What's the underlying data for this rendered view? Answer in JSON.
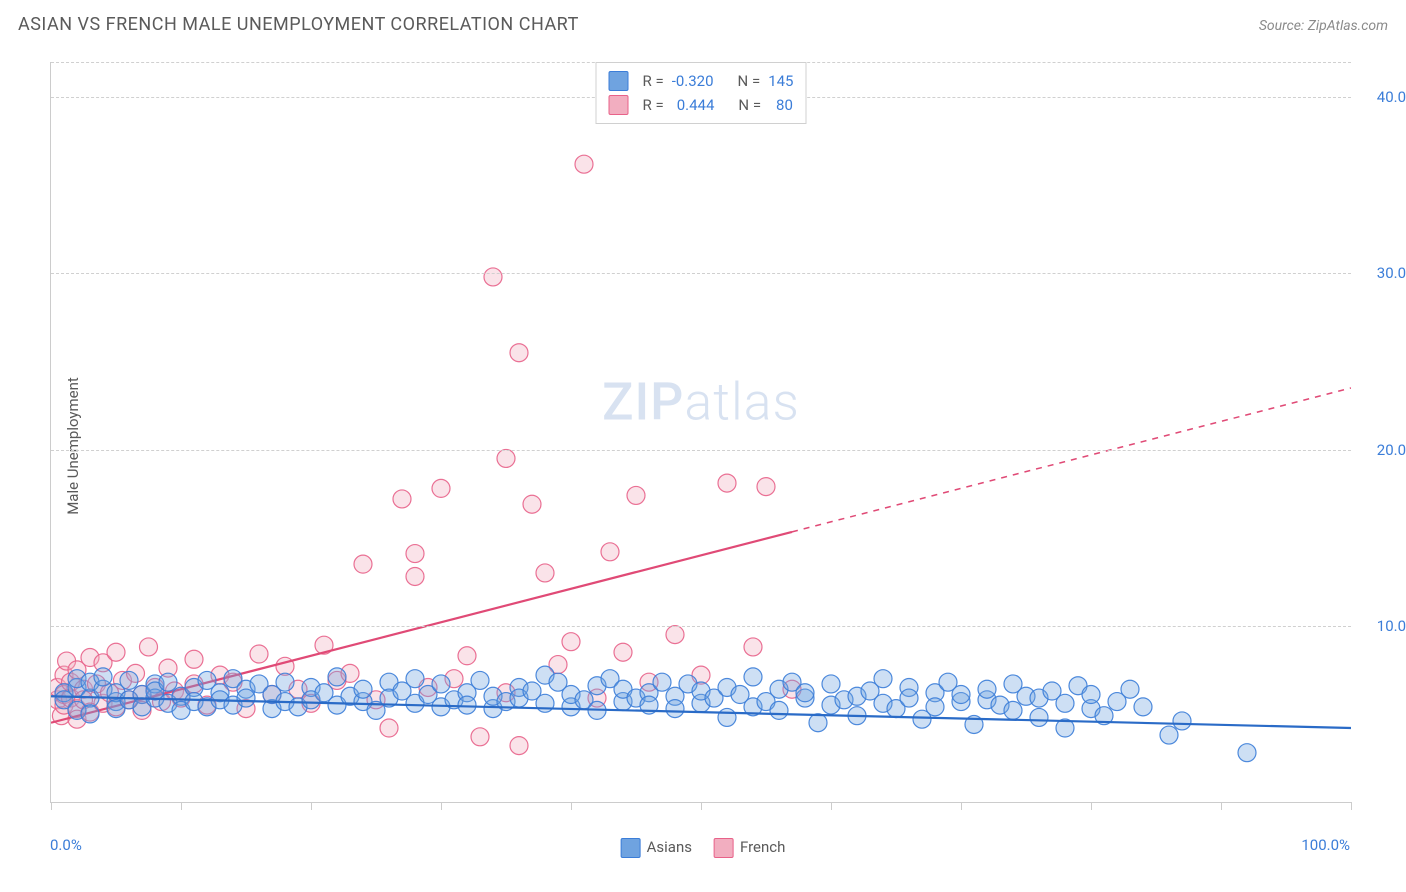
{
  "header": {
    "title": "ASIAN VS FRENCH MALE UNEMPLOYMENT CORRELATION CHART",
    "source": "Source: ZipAtlas.com"
  },
  "watermark": {
    "zip": "ZIP",
    "atlas": "atlas"
  },
  "chart": {
    "type": "scatter",
    "ylabel": "Male Unemployment",
    "xlim": [
      0,
      100
    ],
    "ylim": [
      0,
      42
    ],
    "xticks": [
      0,
      10,
      20,
      30,
      40,
      50,
      60,
      70,
      80,
      90,
      100
    ],
    "yticks": [
      10,
      20,
      30,
      40
    ],
    "ytick_labels": [
      "10.0%",
      "20.0%",
      "30.0%",
      "40.0%"
    ],
    "xlabel_min": "0.0%",
    "xlabel_max": "100.0%",
    "background_color": "#ffffff",
    "grid_color": "#d0d0d0",
    "marker_radius": 9,
    "marker_fill_opacity": 0.35,
    "marker_stroke_opacity": 0.9,
    "marker_stroke_width": 1.2,
    "line_width": 2.2,
    "series": {
      "asians": {
        "label": "Asians",
        "color": "#6fa3e0",
        "stroke": "#3b7dd8",
        "line_color": "#2a6bc7",
        "R": "-0.320",
        "N": "145",
        "trend": {
          "x1": 0,
          "y1": 6.0,
          "x2": 100,
          "y2": 4.2,
          "dash_from_x": 100
        },
        "points": [
          [
            1,
            6.2
          ],
          [
            1,
            5.8
          ],
          [
            2,
            6.5
          ],
          [
            2,
            5.2
          ],
          [
            2,
            7.0
          ],
          [
            3,
            5.9
          ],
          [
            3,
            6.8
          ],
          [
            3,
            5.0
          ],
          [
            4,
            6.4
          ],
          [
            4,
            7.1
          ],
          [
            5,
            5.7
          ],
          [
            5,
            6.2
          ],
          [
            5,
            5.3
          ],
          [
            6,
            6.9
          ],
          [
            6,
            5.8
          ],
          [
            7,
            6.1
          ],
          [
            7,
            5.4
          ],
          [
            8,
            6.7
          ],
          [
            8,
            5.9
          ],
          [
            8,
            6.3
          ],
          [
            9,
            5.6
          ],
          [
            9,
            6.8
          ],
          [
            10,
            6.0
          ],
          [
            10,
            5.2
          ],
          [
            11,
            6.5
          ],
          [
            11,
            5.7
          ],
          [
            12,
            6.9
          ],
          [
            12,
            5.4
          ],
          [
            13,
            6.2
          ],
          [
            13,
            5.8
          ],
          [
            14,
            7.0
          ],
          [
            14,
            5.5
          ],
          [
            15,
            6.4
          ],
          [
            15,
            5.9
          ],
          [
            16,
            6.7
          ],
          [
            17,
            5.3
          ],
          [
            17,
            6.1
          ],
          [
            18,
            5.7
          ],
          [
            18,
            6.8
          ],
          [
            19,
            5.4
          ],
          [
            20,
            6.5
          ],
          [
            20,
            5.8
          ],
          [
            21,
            6.2
          ],
          [
            22,
            5.5
          ],
          [
            22,
            7.1
          ],
          [
            23,
            6.0
          ],
          [
            24,
            5.7
          ],
          [
            24,
            6.4
          ],
          [
            25,
            5.2
          ],
          [
            26,
            6.8
          ],
          [
            26,
            5.9
          ],
          [
            27,
            6.3
          ],
          [
            28,
            5.6
          ],
          [
            28,
            7.0
          ],
          [
            29,
            6.1
          ],
          [
            30,
            5.4
          ],
          [
            30,
            6.7
          ],
          [
            31,
            5.8
          ],
          [
            32,
            6.2
          ],
          [
            32,
            5.5
          ],
          [
            33,
            6.9
          ],
          [
            34,
            5.3
          ],
          [
            34,
            6.0
          ],
          [
            35,
            5.7
          ],
          [
            36,
            6.5
          ],
          [
            36,
            5.9
          ],
          [
            37,
            6.3
          ],
          [
            38,
            5.6
          ],
          [
            38,
            7.2
          ],
          [
            39,
            6.8
          ],
          [
            40,
            5.4
          ],
          [
            40,
            6.1
          ],
          [
            41,
            5.8
          ],
          [
            42,
            6.6
          ],
          [
            42,
            5.2
          ],
          [
            43,
            7.0
          ],
          [
            44,
            5.7
          ],
          [
            44,
            6.4
          ],
          [
            45,
            5.9
          ],
          [
            46,
            6.2
          ],
          [
            46,
            5.5
          ],
          [
            47,
            6.8
          ],
          [
            48,
            6.0
          ],
          [
            48,
            5.3
          ],
          [
            49,
            6.7
          ],
          [
            50,
            5.6
          ],
          [
            50,
            6.3
          ],
          [
            51,
            5.9
          ],
          [
            52,
            6.5
          ],
          [
            52,
            4.8
          ],
          [
            53,
            6.1
          ],
          [
            54,
            5.4
          ],
          [
            54,
            7.1
          ],
          [
            55,
            5.7
          ],
          [
            56,
            6.4
          ],
          [
            56,
            5.2
          ],
          [
            57,
            6.8
          ],
          [
            58,
            5.9
          ],
          [
            58,
            6.2
          ],
          [
            59,
            4.5
          ],
          [
            60,
            5.5
          ],
          [
            60,
            6.7
          ],
          [
            61,
            5.8
          ],
          [
            62,
            6.0
          ],
          [
            62,
            4.9
          ],
          [
            63,
            6.3
          ],
          [
            64,
            5.6
          ],
          [
            64,
            7.0
          ],
          [
            65,
            5.3
          ],
          [
            66,
            6.5
          ],
          [
            66,
            5.9
          ],
          [
            67,
            4.7
          ],
          [
            68,
            6.2
          ],
          [
            68,
            5.4
          ],
          [
            69,
            6.8
          ],
          [
            70,
            5.7
          ],
          [
            70,
            6.1
          ],
          [
            71,
            4.4
          ],
          [
            72,
            5.8
          ],
          [
            72,
            6.4
          ],
          [
            73,
            5.5
          ],
          [
            74,
            6.7
          ],
          [
            74,
            5.2
          ],
          [
            75,
            6.0
          ],
          [
            76,
            4.8
          ],
          [
            76,
            5.9
          ],
          [
            77,
            6.3
          ],
          [
            78,
            5.6
          ],
          [
            78,
            4.2
          ],
          [
            79,
            6.6
          ],
          [
            80,
            5.3
          ],
          [
            80,
            6.1
          ],
          [
            81,
            4.9
          ],
          [
            82,
            5.7
          ],
          [
            83,
            6.4
          ],
          [
            84,
            5.4
          ],
          [
            86,
            3.8
          ],
          [
            87,
            4.6
          ],
          [
            92,
            2.8
          ]
        ]
      },
      "french": {
        "label": "French",
        "color": "#f2aec0",
        "stroke": "#e86289",
        "line_color": "#e04a76",
        "R": "0.444",
        "N": "80",
        "trend": {
          "x1": 0,
          "y1": 4.5,
          "x2": 100,
          "y2": 23.5,
          "dash_from_x": 57
        },
        "points": [
          [
            0.5,
            5.8
          ],
          [
            0.5,
            6.5
          ],
          [
            0.8,
            4.9
          ],
          [
            1,
            7.2
          ],
          [
            1,
            5.5
          ],
          [
            1,
            6.1
          ],
          [
            1.2,
            8.0
          ],
          [
            1.5,
            5.9
          ],
          [
            1.5,
            6.8
          ],
          [
            2,
            5.3
          ],
          [
            2,
            7.5
          ],
          [
            2,
            4.7
          ],
          [
            2.5,
            6.4
          ],
          [
            2.5,
            5.8
          ],
          [
            3,
            8.2
          ],
          [
            3,
            5.1
          ],
          [
            3.5,
            6.7
          ],
          [
            4,
            5.6
          ],
          [
            4,
            7.9
          ],
          [
            4.5,
            6.2
          ],
          [
            5,
            5.4
          ],
          [
            5,
            8.5
          ],
          [
            5.5,
            6.9
          ],
          [
            6,
            5.8
          ],
          [
            6.5,
            7.3
          ],
          [
            7,
            6.1
          ],
          [
            7,
            5.2
          ],
          [
            7.5,
            8.8
          ],
          [
            8,
            6.5
          ],
          [
            8.5,
            5.7
          ],
          [
            9,
            7.6
          ],
          [
            9.5,
            6.3
          ],
          [
            10,
            5.9
          ],
          [
            11,
            8.1
          ],
          [
            11,
            6.7
          ],
          [
            12,
            5.5
          ],
          [
            13,
            7.2
          ],
          [
            14,
            6.8
          ],
          [
            15,
            5.3
          ],
          [
            16,
            8.4
          ],
          [
            17,
            6.1
          ],
          [
            18,
            7.7
          ],
          [
            19,
            6.4
          ],
          [
            20,
            5.6
          ],
          [
            21,
            8.9
          ],
          [
            22,
            6.9
          ],
          [
            23,
            7.3
          ],
          [
            24,
            13.5
          ],
          [
            25,
            5.8
          ],
          [
            26,
            4.2
          ],
          [
            27,
            17.2
          ],
          [
            28,
            12.8
          ],
          [
            28,
            14.1
          ],
          [
            29,
            6.5
          ],
          [
            30,
            17.8
          ],
          [
            31,
            7.0
          ],
          [
            32,
            8.3
          ],
          [
            33,
            3.7
          ],
          [
            34,
            29.8
          ],
          [
            35,
            19.5
          ],
          [
            35,
            6.2
          ],
          [
            36,
            25.5
          ],
          [
            36,
            3.2
          ],
          [
            37,
            16.9
          ],
          [
            38,
            13.0
          ],
          [
            39,
            7.8
          ],
          [
            40,
            9.1
          ],
          [
            41,
            36.2
          ],
          [
            42,
            5.9
          ],
          [
            43,
            14.2
          ],
          [
            44,
            8.5
          ],
          [
            45,
            17.4
          ],
          [
            46,
            6.8
          ],
          [
            48,
            9.5
          ],
          [
            50,
            7.2
          ],
          [
            52,
            18.1
          ],
          [
            54,
            8.8
          ],
          [
            55,
            17.9
          ],
          [
            57,
            6.4
          ]
        ]
      }
    }
  }
}
